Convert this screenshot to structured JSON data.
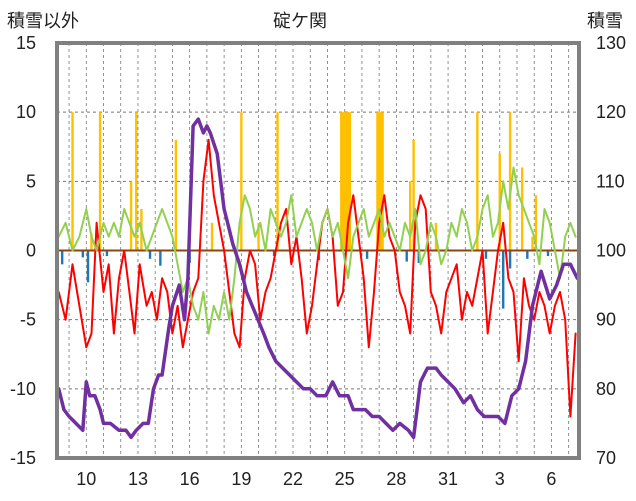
{
  "chart_data": {
    "type": "line",
    "title": "碇ケ関",
    "left_axis_label": "積雪以外",
    "right_axis_label": "積雪",
    "left_ylim": [
      -15,
      15
    ],
    "left_yticks": [
      15,
      10,
      5,
      0,
      -5,
      -10,
      -15
    ],
    "right_ylim": [
      70,
      130
    ],
    "right_yticks": [
      130,
      120,
      110,
      100,
      90,
      80,
      70
    ],
    "x_ticks": [
      {
        "day": 10,
        "label": "10"
      },
      {
        "day": 13,
        "label": "13"
      },
      {
        "day": 16,
        "label": "16"
      },
      {
        "day": 19,
        "label": "19"
      },
      {
        "day": 22,
        "label": "22"
      },
      {
        "day": 25,
        "label": "25"
      },
      {
        "day": 28,
        "label": "28"
      },
      {
        "day": 31,
        "label": "31"
      },
      {
        "day": 34,
        "label": "3"
      },
      {
        "day": 37,
        "label": "6"
      }
    ],
    "xlim": [
      8.3,
      38.6
    ],
    "grid": true,
    "colors": {
      "snowfall": "#FFC000",
      "precip": "#1F77B4",
      "temperature": "#FF0000",
      "humidity_like": "#92D050",
      "snow_depth": "#7030A0",
      "frame": "#808080",
      "zero_line": "#8B4513",
      "grid": "#777777"
    },
    "series": [
      {
        "key": "snow_depth",
        "axis": "right",
        "x": [
          8.4,
          8.7,
          9.0,
          9.4,
          9.8,
          10.0,
          10.2,
          10.5,
          10.8,
          11.0,
          11.4,
          11.9,
          12.3,
          12.6,
          12.9,
          13.3,
          13.6,
          13.9,
          14.2,
          14.4,
          14.8,
          15.0,
          15.4,
          15.7,
          15.9,
          16.2,
          16.5,
          16.8,
          17.0,
          17.2,
          17.6,
          18.0,
          18.2,
          18.5,
          18.9,
          19.3,
          19.8,
          20.3,
          20.6,
          21.0,
          21.4,
          21.8,
          22.2,
          22.6,
          23.0,
          23.4,
          23.9,
          24.3,
          24.7,
          25.2,
          25.5,
          25.8,
          26.2,
          26.6,
          27.0,
          27.4,
          27.8,
          28.2,
          28.7,
          29.0,
          29.4,
          29.8,
          30.3,
          30.6,
          31.0,
          31.4,
          31.9,
          32.3,
          32.7,
          33.1,
          33.5,
          33.9,
          34.3,
          34.7,
          35.1,
          35.5,
          35.9,
          36.4,
          36.9,
          37.3,
          37.7,
          38.1,
          38.5
        ],
        "values": [
          80,
          77,
          76,
          75,
          74,
          81,
          79,
          79,
          77,
          75,
          75,
          74,
          74,
          73,
          74,
          75,
          75,
          80,
          82,
          82,
          89,
          92,
          95,
          90,
          96,
          118,
          119,
          117,
          118,
          117,
          114,
          106,
          104,
          101,
          98,
          94,
          91,
          88,
          86,
          84,
          83,
          82,
          81,
          80,
          80,
          79,
          79,
          81,
          79,
          79,
          77,
          77,
          77,
          76,
          76,
          75,
          74,
          75,
          74,
          73,
          81,
          83,
          83,
          82,
          81,
          80,
          78,
          79,
          77,
          76,
          76,
          76,
          75,
          79,
          80,
          84,
          92,
          97,
          93,
          95,
          98,
          98,
          96
        ]
      },
      {
        "key": "temperature",
        "axis": "left",
        "x": [
          8.4,
          8.8,
          9.2,
          9.6,
          10.0,
          10.3,
          10.6,
          11.0,
          11.3,
          11.6,
          11.9,
          12.2,
          12.5,
          12.8,
          13.1,
          13.5,
          13.8,
          14.1,
          14.4,
          14.7,
          15.0,
          15.3,
          15.6,
          15.9,
          16.2,
          16.5,
          16.8,
          17.1,
          17.4,
          17.7,
          18.0,
          18.3,
          18.6,
          18.9,
          19.2,
          19.5,
          19.8,
          20.1,
          20.4,
          20.7,
          21.0,
          21.3,
          21.6,
          21.9,
          22.2,
          22.5,
          22.8,
          23.1,
          23.4,
          23.7,
          24.0,
          24.3,
          24.6,
          24.9,
          25.2,
          25.5,
          25.8,
          26.1,
          26.4,
          26.7,
          27.0,
          27.3,
          27.6,
          27.9,
          28.2,
          28.5,
          28.8,
          29.1,
          29.4,
          29.7,
          30.0,
          30.3,
          30.6,
          30.9,
          31.2,
          31.5,
          31.8,
          32.1,
          32.4,
          32.7,
          33.0,
          33.3,
          33.6,
          33.9,
          34.2,
          34.5,
          34.8,
          35.1,
          35.4,
          35.7,
          36.0,
          36.3,
          36.6,
          36.9,
          37.2,
          37.5,
          37.8,
          38.1,
          38.4
        ],
        "values": [
          -3,
          -5,
          -1,
          -4,
          -7,
          -6,
          2,
          -3,
          -1,
          -6,
          -2,
          0,
          -3,
          -6,
          -1,
          -4,
          -3,
          -5,
          -2,
          -3,
          -6,
          -4,
          -7,
          -5,
          -3,
          -2,
          5,
          8,
          4,
          2,
          0,
          -3,
          -6,
          -7,
          -2,
          0,
          -1,
          -5,
          -3,
          -2,
          0,
          2,
          3,
          -1,
          1,
          -2,
          -6,
          -4,
          -1,
          2,
          3,
          1,
          -4,
          -3,
          2,
          4,
          1,
          -2,
          -7,
          -3,
          2,
          4,
          1,
          0,
          -3,
          -4,
          -6,
          2,
          4,
          3,
          -3,
          -4,
          -6,
          -3,
          -2,
          -1,
          -5,
          -3,
          -4,
          -2,
          0,
          -6,
          -3,
          0,
          2,
          -2,
          -3,
          -8,
          -2,
          -4,
          -5,
          -3,
          -4,
          -6,
          -4,
          -3,
          -5,
          -12,
          -6
        ]
      },
      {
        "key": "humidity_like",
        "axis": "left",
        "x": [
          8.4,
          8.8,
          9.2,
          9.6,
          10.0,
          10.3,
          10.6,
          11.0,
          11.3,
          11.6,
          11.9,
          12.2,
          12.5,
          12.8,
          13.1,
          13.5,
          13.8,
          14.1,
          14.4,
          14.7,
          15.0,
          15.3,
          15.6,
          15.9,
          16.2,
          16.5,
          16.8,
          17.1,
          17.4,
          17.7,
          18.0,
          18.3,
          18.6,
          18.9,
          19.2,
          19.5,
          19.8,
          20.1,
          20.4,
          20.7,
          21.0,
          21.3,
          21.6,
          21.9,
          22.2,
          22.5,
          22.8,
          23.1,
          23.4,
          23.7,
          24.0,
          24.3,
          24.6,
          24.9,
          25.2,
          25.5,
          25.8,
          26.1,
          26.4,
          26.7,
          27.0,
          27.3,
          27.6,
          27.9,
          28.2,
          28.5,
          28.8,
          29.1,
          29.4,
          29.7,
          30.0,
          30.3,
          30.6,
          30.9,
          31.2,
          31.5,
          31.8,
          32.1,
          32.4,
          32.7,
          33.0,
          33.3,
          33.6,
          33.9,
          34.2,
          34.5,
          34.8,
          35.1,
          35.4,
          35.7,
          36.0,
          36.3,
          36.6,
          36.9,
          37.2,
          37.5,
          37.8,
          38.1,
          38.4
        ],
        "values": [
          1,
          2,
          0,
          1,
          3,
          1,
          0,
          2,
          1,
          2,
          1,
          3,
          2,
          1,
          2,
          0,
          1,
          2,
          3,
          2,
          1,
          -1,
          -3,
          -2,
          -4,
          -5,
          -3,
          -6,
          -4,
          -5,
          -3,
          -5,
          -2,
          2,
          4,
          3,
          1,
          2,
          0,
          3,
          2,
          1,
          2,
          4,
          1,
          2,
          3,
          2,
          0,
          2,
          3,
          1,
          2,
          0,
          -2,
          1,
          2,
          3,
          1,
          2,
          3,
          1,
          2,
          1,
          0,
          2,
          1,
          3,
          -1,
          0,
          2,
          1,
          -1,
          0,
          2,
          1,
          3,
          2,
          0,
          1,
          3,
          4,
          1,
          2,
          5,
          3,
          6,
          4,
          3,
          2,
          1,
          -1,
          3,
          2,
          0,
          -2,
          1,
          2,
          1
        ]
      }
    ],
    "bars": [
      {
        "key": "snowfall",
        "axis": "left",
        "x": [
          9.2,
          10.3,
          10.8,
          12.6,
          12.9,
          13.2,
          15.2,
          17.3,
          19.0,
          20.0,
          21.1,
          24.8,
          24.9,
          25.0,
          25.1,
          25.2,
          25.3,
          26.9,
          27.0,
          27.1,
          27.2,
          28.8,
          29.0,
          30.3,
          32.7,
          34.0,
          34.6,
          35.3,
          35.9,
          36.1
        ],
        "values": [
          10,
          1.2,
          10,
          5,
          10,
          3,
          8,
          2,
          10,
          2,
          10,
          10,
          10,
          10,
          10,
          10,
          10,
          10,
          10,
          10,
          10,
          5,
          8,
          2,
          10,
          7,
          10,
          6,
          1,
          4
        ]
      },
      {
        "key": "precip",
        "axis": "left",
        "x": [
          8.6,
          9.8,
          10.1,
          11.2,
          13.7,
          14.3,
          16.0,
          20.9,
          23.5,
          26.3,
          28.6,
          29.3,
          33.2,
          34.2,
          34.6,
          35.6,
          36.8
        ],
        "values": [
          -1,
          -0.5,
          -2.3,
          -0.4,
          -0.6,
          -1.1,
          -0.9,
          -0.4,
          -0.7,
          -0.6,
          -0.8,
          -0.9,
          -0.6,
          -4.2,
          -1.3,
          -0.6,
          -0.4
        ]
      }
    ]
  }
}
